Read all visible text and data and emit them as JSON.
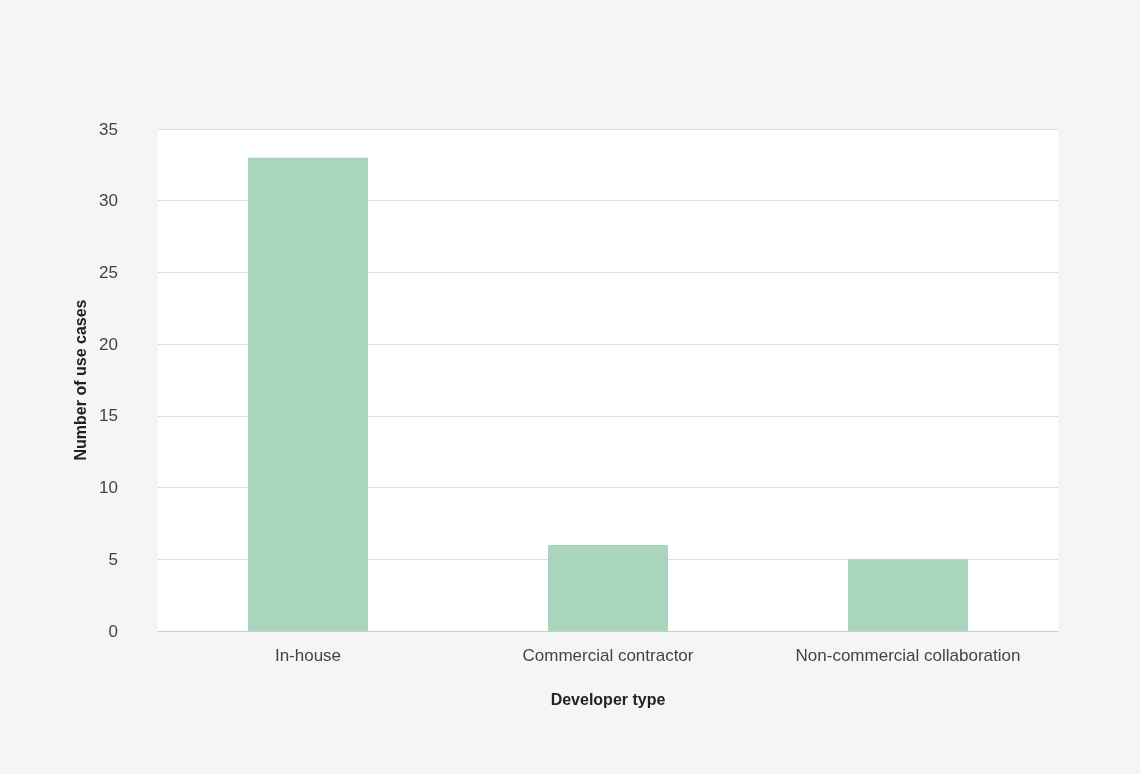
{
  "chart_data": {
    "type": "bar",
    "xlabel": "Developer type",
    "ylabel": "Number of use cases",
    "categories": [
      "In-house",
      "Commercial contractor",
      "Non-commercial collaboration"
    ],
    "values": [
      33,
      6,
      5
    ],
    "color": "#a8d5bc",
    "ylim": [
      0,
      35
    ],
    "yticks": [
      0,
      5,
      10,
      15,
      20,
      25,
      30,
      35
    ],
    "grid": "y"
  }
}
